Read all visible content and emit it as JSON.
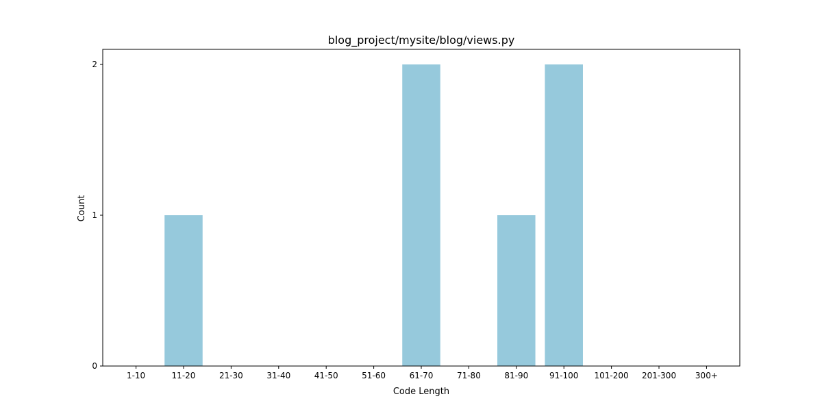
{
  "chart_data": {
    "type": "bar",
    "title": "blog_project/mysite/blog/views.py",
    "xlabel": "Code Length",
    "ylabel": "Count",
    "categories": [
      "1-10",
      "11-20",
      "21-30",
      "31-40",
      "41-50",
      "51-60",
      "61-70",
      "71-80",
      "81-90",
      "91-100",
      "101-200",
      "201-300",
      "300+"
    ],
    "values": [
      0,
      1,
      0,
      0,
      0,
      0,
      2,
      0,
      1,
      2,
      0,
      0,
      0
    ],
    "yticks": [
      "0",
      "1",
      "2"
    ],
    "ylim": [
      0,
      2.1
    ],
    "grid": false,
    "bar_color": "#96c9dc"
  }
}
